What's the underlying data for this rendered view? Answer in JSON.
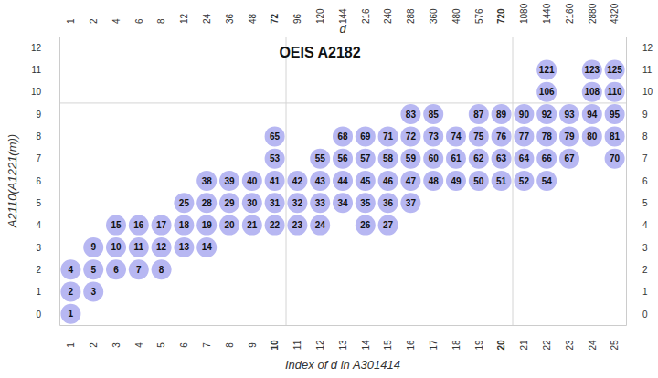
{
  "chart_data": {
    "type": "scatter",
    "title": "OEIS A2182",
    "xlabel": "Index of d in A301414",
    "ylabel": "A2110(A1221(m))",
    "x2label": "d",
    "color": "#b7b7f2",
    "data_labels": true,
    "grid": false,
    "xlim": [
      0.5,
      25.5
    ],
    "ylim": [
      -0.5,
      12.5
    ],
    "y2lim": [
      -0.5,
      12.5
    ],
    "xticks": [
      1,
      2,
      3,
      4,
      5,
      6,
      7,
      8,
      9,
      10,
      11,
      12,
      13,
      14,
      15,
      16,
      17,
      18,
      19,
      20,
      21,
      22,
      23,
      24,
      25
    ],
    "yticks": [
      0,
      1,
      2,
      3,
      4,
      5,
      6,
      7,
      8,
      9,
      10,
      11,
      12
    ],
    "y2ticks": [
      0,
      1,
      2,
      3,
      4,
      5,
      6,
      7,
      8,
      9,
      10,
      11,
      12
    ],
    "x2ticks": [
      {
        "value": 1,
        "label": "1"
      },
      {
        "value": 2,
        "label": "2"
      },
      {
        "value": 3,
        "label": "4"
      },
      {
        "value": 4,
        "label": "6"
      },
      {
        "value": 5,
        "label": "8"
      },
      {
        "value": 6,
        "label": "12"
      },
      {
        "value": 7,
        "label": "24"
      },
      {
        "value": 8,
        "label": "36"
      },
      {
        "value": 9,
        "label": "48"
      },
      {
        "value": 10,
        "label": "72"
      },
      {
        "value": 11,
        "label": "96"
      },
      {
        "value": 12,
        "label": "120"
      },
      {
        "value": 13,
        "label": "144"
      },
      {
        "value": 14,
        "label": "216"
      },
      {
        "value": 15,
        "label": "240"
      },
      {
        "value": 16,
        "label": "288"
      },
      {
        "value": 17,
        "label": "360"
      },
      {
        "value": 18,
        "label": "480"
      },
      {
        "value": 19,
        "label": "576"
      },
      {
        "value": 20,
        "label": "720"
      },
      {
        "value": 21,
        "label": "1080"
      },
      {
        "value": 22,
        "label": "1440"
      },
      {
        "value": 23,
        "label": "2160"
      },
      {
        "value": 24,
        "label": "2880"
      },
      {
        "value": 25,
        "label": "4320"
      }
    ],
    "x_lines": [
      10.5,
      20.5
    ],
    "y_lines": [
      9.5
    ],
    "m": [
      1,
      2,
      3,
      4,
      5,
      6,
      7,
      8,
      9,
      10,
      11,
      12,
      13,
      14,
      15,
      16,
      17,
      18,
      19,
      20,
      21,
      22,
      23,
      24,
      25,
      26,
      27,
      28,
      29,
      30,
      31,
      32,
      33,
      34,
      35,
      36,
      37,
      38,
      39,
      40,
      41,
      42,
      43,
      44,
      45,
      46,
      47,
      48,
      49,
      50,
      51,
      52,
      53,
      54,
      55,
      56,
      57,
      58,
      59,
      60,
      61,
      62,
      63,
      64,
      65,
      66,
      67,
      68,
      69,
      70,
      71,
      72,
      73,
      74,
      75,
      76,
      77,
      78,
      79,
      80,
      81,
      83,
      85,
      87,
      89,
      90,
      92,
      93,
      94,
      95,
      106,
      108,
      110,
      121,
      123,
      125
    ],
    "x": [
      1,
      1,
      2,
      1,
      2,
      3,
      4,
      5,
      2,
      3,
      4,
      5,
      6,
      7,
      3,
      4,
      5,
      6,
      7,
      8,
      9,
      10,
      11,
      12,
      6,
      14,
      15,
      7,
      8,
      9,
      10,
      11,
      12,
      13,
      14,
      15,
      16,
      7,
      8,
      9,
      10,
      11,
      12,
      13,
      14,
      15,
      16,
      17,
      18,
      19,
      20,
      21,
      10,
      22,
      12,
      13,
      14,
      15,
      16,
      17,
      18,
      19,
      20,
      21,
      10,
      22,
      23,
      13,
      14,
      25,
      15,
      16,
      17,
      18,
      19,
      20,
      21,
      22,
      23,
      24,
      25,
      16,
      17,
      19,
      20,
      21,
      22,
      23,
      24,
      25,
      22,
      24,
      25,
      22,
      24,
      25
    ],
    "values": [
      0,
      1,
      1,
      2,
      2,
      2,
      2,
      2,
      3,
      3,
      3,
      3,
      3,
      3,
      4,
      4,
      4,
      4,
      4,
      4,
      4,
      4,
      4,
      4,
      5,
      4,
      4,
      5,
      5,
      5,
      5,
      5,
      5,
      5,
      5,
      5,
      5,
      6,
      6,
      6,
      6,
      6,
      6,
      6,
      6,
      6,
      6,
      6,
      6,
      6,
      6,
      6,
      7,
      6,
      7,
      7,
      7,
      7,
      7,
      7,
      7,
      7,
      7,
      7,
      8,
      7,
      7,
      8,
      8,
      7,
      8,
      8,
      8,
      8,
      8,
      8,
      8,
      8,
      8,
      8,
      8,
      9,
      9,
      9,
      9,
      9,
      9,
      9,
      9,
      9,
      10,
      10,
      10,
      11,
      11,
      11
    ]
  }
}
